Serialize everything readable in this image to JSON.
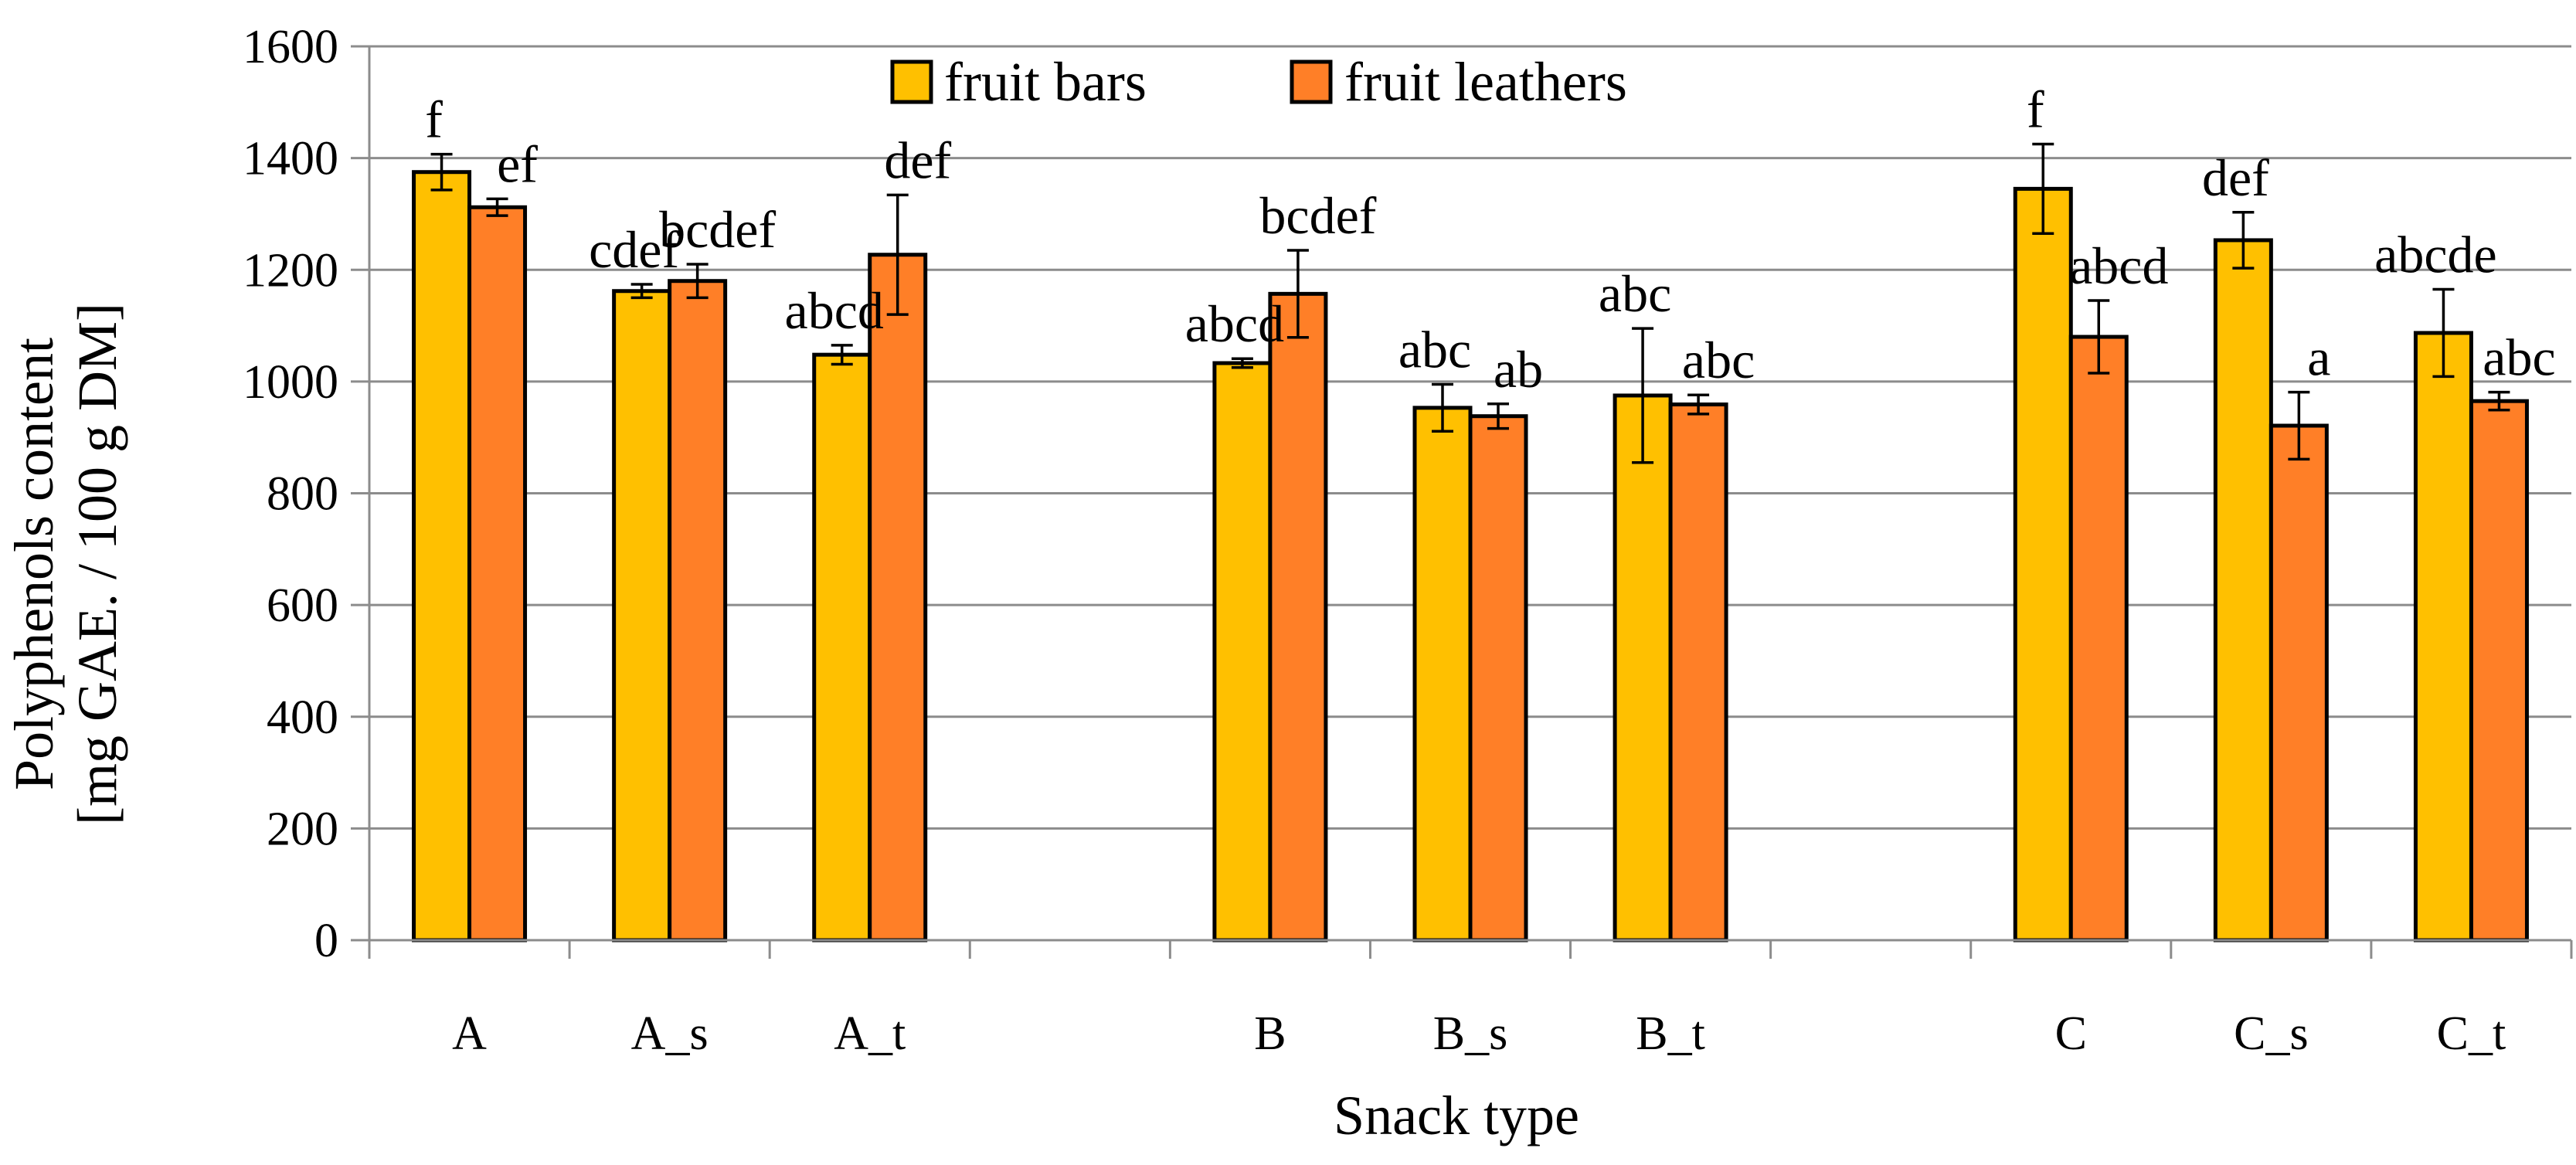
{
  "chart_data": {
    "type": "bar",
    "xlabel": "Snack type",
    "ylabel_lines": [
      "Polyphenols content",
      "[mg GAE. / 100 g DM]"
    ],
    "ylim": [
      0,
      1600
    ],
    "yticks": [
      0,
      200,
      400,
      600,
      800,
      1000,
      1200,
      1400,
      1600
    ],
    "grid": true,
    "legend_position": "top-center",
    "slots": [
      "A",
      "A_s",
      "A_t",
      "",
      "B",
      "B_s",
      "B_t",
      "",
      "C",
      "C_s",
      "C_t"
    ],
    "categories": [
      "A",
      "A_s",
      "A_t",
      "B",
      "B_s",
      "B_t",
      "C",
      "C_s",
      "C_t"
    ],
    "series": [
      {
        "name": "fruit bars",
        "color": "#FFC000",
        "values": [
          1375,
          1162,
          1048,
          1033,
          953,
          975,
          1345,
          1253,
          1087
        ],
        "errors": [
          32,
          12,
          17,
          8,
          42,
          120,
          80,
          50,
          78
        ],
        "labels": [
          "f",
          "cdef",
          "abcd",
          "abcd",
          "abc",
          "abc",
          "f",
          "def",
          "abcde"
        ]
      },
      {
        "name": "fruit leathers",
        "color": "#FF7F27",
        "values": [
          1312,
          1180,
          1227,
          1157,
          938,
          959,
          1080,
          921,
          965
        ],
        "errors": [
          15,
          30,
          107,
          78,
          22,
          17,
          65,
          60,
          16
        ],
        "labels": [
          "ef",
          "bcdef",
          "def",
          "bcdef",
          "ab",
          "abc",
          "abcd",
          "a",
          "abc"
        ]
      }
    ]
  }
}
